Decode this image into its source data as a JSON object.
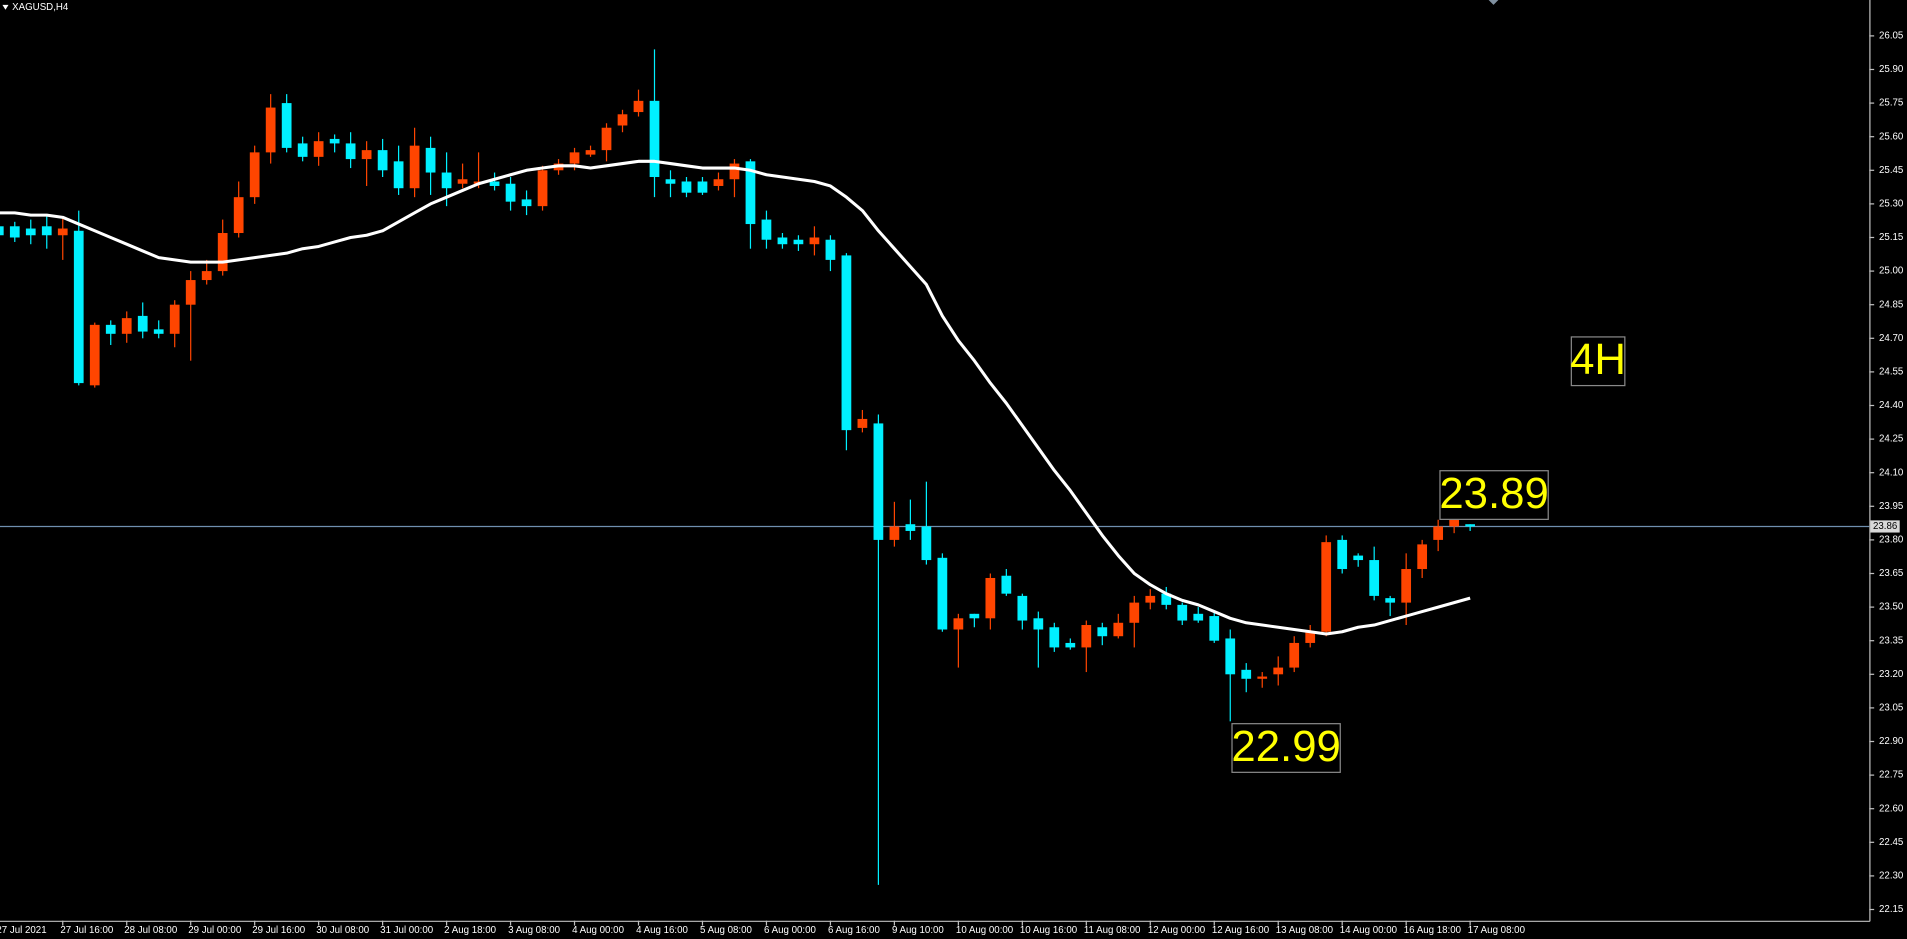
{
  "chart_data": {
    "type": "candlestick",
    "title": "XAGUSD,H4",
    "categories": [
      "27 Jul 2021",
      null,
      null,
      null,
      "27 Jul 16:00",
      null,
      null,
      null,
      "28 Jul 08:00",
      null,
      null,
      null,
      "29 Jul 00:00",
      null,
      null,
      null,
      "29 Jul 16:00",
      null,
      null,
      null,
      "30 Jul 08:00",
      null,
      null,
      null,
      "31 Jul 00:00",
      null,
      null,
      null,
      "2 Aug 18:00",
      null,
      null,
      null,
      "3 Aug 08:00",
      null,
      null,
      null,
      "4 Aug 00:00",
      null,
      null,
      null,
      "4 Aug 16:00",
      null,
      null,
      null,
      "5 Aug 08:00",
      null,
      null,
      null,
      "6 Aug 00:00",
      null,
      null,
      null,
      "6 Aug 16:00",
      null,
      null,
      null,
      "9 Aug 10:00",
      null,
      null,
      null,
      "10 Aug 00:00",
      null,
      null,
      null,
      "10 Aug 16:00",
      null,
      null,
      null,
      "11 Aug 08:00",
      null,
      null,
      null,
      "12 Aug 00:00",
      null,
      null,
      null,
      "12 Aug 16:00",
      null,
      null,
      null,
      "13 Aug 08:00",
      null,
      null,
      null,
      "14 Aug 00:00",
      null,
      null,
      null,
      "16 Aug 18:00",
      null,
      null,
      null,
      "17 Aug 08:00"
    ],
    "open": [
      25.2,
      25.2,
      25.19,
      25.2,
      25.16,
      25.18,
      24.49,
      24.76,
      24.72,
      24.8,
      24.74,
      24.72,
      24.85,
      24.96,
      25.0,
      25.17,
      25.33,
      25.53,
      25.75,
      25.57,
      25.51,
      25.59,
      25.57,
      25.5,
      25.54,
      25.49,
      25.37,
      25.55,
      25.44,
      25.39,
      25.39,
      25.4,
      25.39,
      25.32,
      25.29,
      25.45,
      25.48,
      25.52,
      25.54,
      25.65,
      25.71,
      25.76,
      25.41,
      25.4,
      25.4,
      25.38,
      25.41,
      25.49,
      25.23,
      25.15,
      25.14,
      25.12,
      25.14,
      25.07,
      24.3,
      24.32,
      23.8,
      23.87,
      23.86,
      23.72,
      23.4,
      23.47,
      23.45,
      23.64,
      23.55,
      23.45,
      23.41,
      23.34,
      23.32,
      23.41,
      23.37,
      23.43,
      23.52,
      23.56,
      23.51,
      23.47,
      23.46,
      23.36,
      23.22,
      23.18,
      23.2,
      23.23,
      23.34,
      23.39,
      23.8,
      23.73,
      23.71,
      23.54,
      23.52,
      23.67,
      23.8,
      23.86,
      23.87
    ],
    "high": [
      25.22,
      25.22,
      25.23,
      25.25,
      25.24,
      25.27,
      24.77,
      24.78,
      24.82,
      24.86,
      24.78,
      24.87,
      25.0,
      25.05,
      25.23,
      25.4,
      25.56,
      25.79,
      25.79,
      25.6,
      25.62,
      25.61,
      25.62,
      25.58,
      25.59,
      25.56,
      25.64,
      25.6,
      25.53,
      25.48,
      25.53,
      25.44,
      25.42,
      25.36,
      25.47,
      25.5,
      25.55,
      25.56,
      25.66,
      25.72,
      25.81,
      25.99,
      25.45,
      25.42,
      25.42,
      25.44,
      25.5,
      25.5,
      25.27,
      25.17,
      25.16,
      25.2,
      25.16,
      25.08,
      24.38,
      24.36,
      23.97,
      23.98,
      24.06,
      23.74,
      23.47,
      23.47,
      23.65,
      23.67,
      23.56,
      23.48,
      23.43,
      23.36,
      23.44,
      23.43,
      23.47,
      23.55,
      23.58,
      23.59,
      23.52,
      23.5,
      23.48,
      23.4,
      23.25,
      23.21,
      23.28,
      23.37,
      23.42,
      23.82,
      23.82,
      23.74,
      23.77,
      23.55,
      23.74,
      23.8,
      23.89,
      23.89,
      23.87
    ],
    "low": [
      25.13,
      25.13,
      25.12,
      25.1,
      25.05,
      24.49,
      24.48,
      24.67,
      24.68,
      24.7,
      24.7,
      24.66,
      24.6,
      24.94,
      24.98,
      25.15,
      25.3,
      25.48,
      25.53,
      25.49,
      25.47,
      25.53,
      25.46,
      25.38,
      25.42,
      25.34,
      25.33,
      25.34,
      25.29,
      25.37,
      25.37,
      25.36,
      25.27,
      25.25,
      25.27,
      25.43,
      25.45,
      25.51,
      25.49,
      25.62,
      25.69,
      25.33,
      25.33,
      25.33,
      25.34,
      25.36,
      25.33,
      25.1,
      25.1,
      25.1,
      25.09,
      25.07,
      25.0,
      24.2,
      24.28,
      22.26,
      23.77,
      23.8,
      23.69,
      23.39,
      23.23,
      23.41,
      23.4,
      23.55,
      23.4,
      23.23,
      23.3,
      23.31,
      23.21,
      23.33,
      23.36,
      23.32,
      23.49,
      23.49,
      23.42,
      23.43,
      23.34,
      22.99,
      23.12,
      23.14,
      23.15,
      23.21,
      23.32,
      23.37,
      23.65,
      23.68,
      23.53,
      23.46,
      23.42,
      23.63,
      23.75,
      23.83,
      23.84
    ],
    "close": [
      25.16,
      25.15,
      25.16,
      25.16,
      25.19,
      24.5,
      24.76,
      24.72,
      24.79,
      24.73,
      24.72,
      24.85,
      24.96,
      25.0,
      25.17,
      25.33,
      25.53,
      25.73,
      25.55,
      25.51,
      25.58,
      25.57,
      25.5,
      25.54,
      25.45,
      25.37,
      25.56,
      25.44,
      25.37,
      25.41,
      25.4,
      25.38,
      25.31,
      25.29,
      25.45,
      25.48,
      25.53,
      25.54,
      25.64,
      25.7,
      25.76,
      25.42,
      25.39,
      25.35,
      25.35,
      25.41,
      25.48,
      25.21,
      25.14,
      25.12,
      25.12,
      25.15,
      25.05,
      24.29,
      24.34,
      23.8,
      23.86,
      23.84,
      23.71,
      23.4,
      23.45,
      23.45,
      23.63,
      23.56,
      23.44,
      23.4,
      23.32,
      23.32,
      23.42,
      23.37,
      23.43,
      23.52,
      23.55,
      23.51,
      23.44,
      23.44,
      23.35,
      23.2,
      23.18,
      23.19,
      23.23,
      23.34,
      23.39,
      23.79,
      23.67,
      23.71,
      23.55,
      23.52,
      23.67,
      23.78,
      23.86,
      23.89,
      23.86
    ],
    "up_color": "#ff4500",
    "down_color": "#00f0ff",
    "moving_average": {
      "color": "#ffffff",
      "values": [
        25.26,
        25.26,
        25.25,
        25.25,
        25.24,
        25.21,
        25.18,
        25.15,
        25.12,
        25.09,
        25.06,
        25.05,
        25.04,
        25.04,
        25.04,
        25.05,
        25.06,
        25.07,
        25.08,
        25.1,
        25.11,
        25.13,
        25.15,
        25.16,
        25.18,
        25.22,
        25.26,
        25.3,
        25.33,
        25.36,
        25.39,
        25.41,
        25.43,
        25.45,
        25.46,
        25.47,
        25.47,
        25.46,
        25.47,
        25.48,
        25.49,
        25.49,
        25.48,
        25.47,
        25.46,
        25.46,
        25.46,
        25.45,
        25.43,
        25.42,
        25.41,
        25.4,
        25.38,
        25.33,
        25.27,
        25.18,
        25.1,
        25.02,
        24.94,
        24.8,
        24.69,
        24.6,
        24.5,
        24.41,
        24.31,
        24.21,
        24.11,
        24.02,
        23.92,
        23.82,
        23.73,
        23.65,
        23.6,
        23.56,
        23.53,
        23.51,
        23.48,
        23.45,
        23.43,
        23.42,
        23.41,
        23.4,
        23.39,
        23.38,
        23.39,
        23.41,
        23.42,
        23.44,
        23.46,
        23.48,
        23.5,
        23.52,
        23.54
      ]
    },
    "ylim": [
      22.1,
      26.21
    ],
    "yticks": [
      22.15,
      {
        "value": 22.3,
        "label": "22.30"
      },
      22.45,
      {
        "value": 22.6,
        "label": "22.60"
      },
      22.75,
      {
        "value": 22.9,
        "label": "22.90"
      },
      23.05,
      {
        "value": 23.2,
        "label": "23.20"
      },
      23.35,
      {
        "value": 23.5,
        "label": "23.50"
      },
      23.65,
      {
        "value": 23.8,
        "label": "23.80"
      },
      23.95,
      {
        "value": 24.1,
        "label": "24.10"
      },
      24.25,
      {
        "value": 24.4,
        "label": "24.40"
      },
      24.55,
      {
        "value": 24.7,
        "label": "24.70"
      },
      24.85,
      {
        "value": 25,
        "label": "25.00"
      },
      25.15,
      {
        "value": 25.3,
        "label": "25.30"
      },
      25.45,
      {
        "value": 25.6,
        "label": "25.60"
      },
      25.75,
      {
        "value": 25.9,
        "label": "25.90"
      },
      26.05
    ],
    "grid": false,
    "price_line": 23.86,
    "price_line_color": "#6f8faf",
    "annotations": [
      "4H",
      "23.89",
      "22.99"
    ]
  }
}
